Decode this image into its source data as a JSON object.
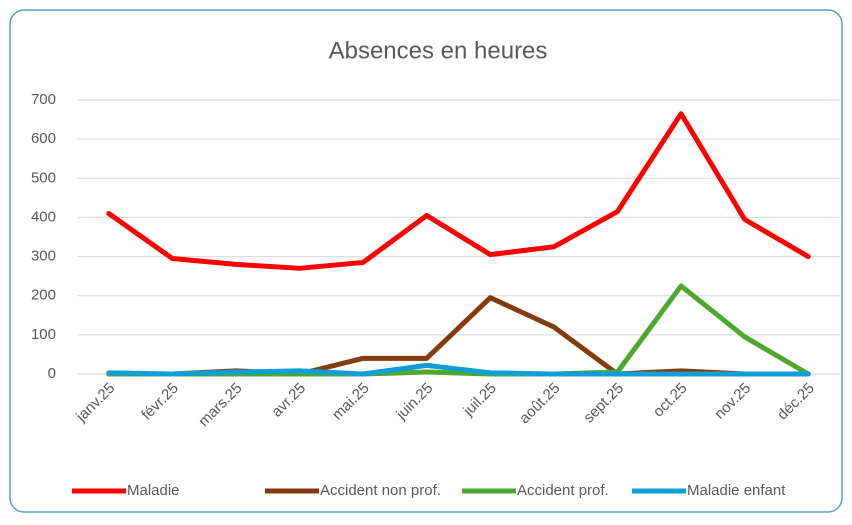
{
  "chart_data": {
    "type": "line",
    "title": "Absences en heures",
    "categories": [
      "janv.25",
      "févr.25",
      "mars.25",
      "avr.25",
      "mai.25",
      "juin.25",
      "juil.25",
      "août.25",
      "sept.25",
      "oct.25",
      "nov.25",
      "déc.25"
    ],
    "series": [
      {
        "name": "Maladie",
        "color": "#ff0000",
        "values": [
          410,
          295,
          280,
          270,
          285,
          405,
          305,
          325,
          415,
          665,
          395,
          300
        ]
      },
      {
        "name": "Accident non prof.",
        "color": "#843c0c",
        "values": [
          0,
          0,
          8,
          0,
          40,
          40,
          195,
          120,
          0,
          8,
          0,
          0
        ]
      },
      {
        "name": "Accident prof.",
        "color": "#4ea72e",
        "values": [
          0,
          0,
          0,
          0,
          0,
          5,
          0,
          0,
          5,
          225,
          95,
          0
        ]
      },
      {
        "name": "Maladie enfant",
        "color": "#0f9ed5",
        "values": [
          3,
          0,
          5,
          8,
          0,
          22,
          3,
          0,
          0,
          0,
          0,
          0
        ]
      }
    ],
    "ylim": [
      0,
      700
    ],
    "yticks": [
      0,
      100,
      200,
      300,
      400,
      500,
      600,
      700
    ],
    "grid": true,
    "legend": "bottom"
  }
}
